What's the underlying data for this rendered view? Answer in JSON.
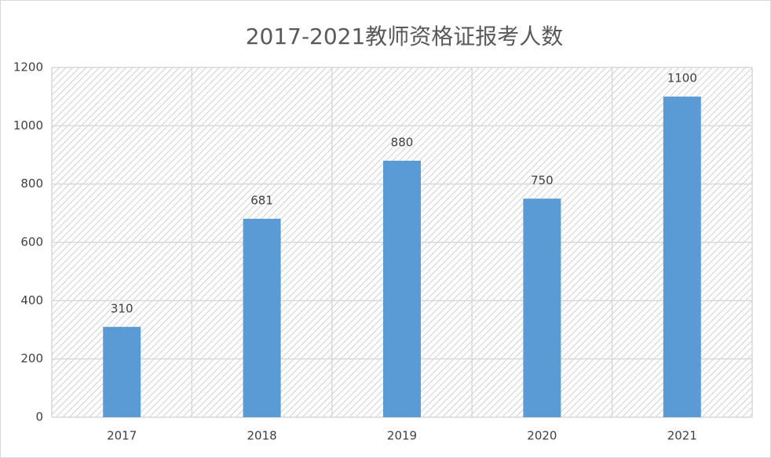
{
  "chart_data": {
    "type": "bar",
    "title": "2017-2021教师资格证报考人数",
    "categories": [
      "2017",
      "2018",
      "2019",
      "2020",
      "2021"
    ],
    "values": [
      310,
      681,
      880,
      750,
      1100
    ],
    "color": "#5b9bd5",
    "ylim": [
      0,
      1200
    ],
    "yticks": [
      0,
      200,
      400,
      600,
      800,
      1000,
      1200
    ],
    "grid": true
  }
}
